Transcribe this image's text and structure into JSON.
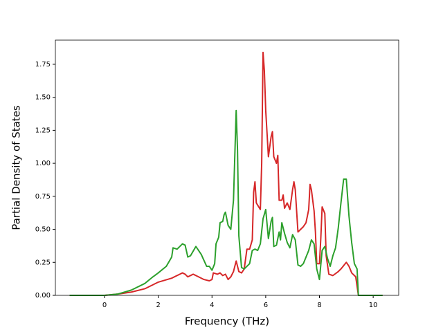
{
  "chart_data": {
    "type": "line",
    "xlabel": "Frequency (THz)",
    "ylabel": "Partial Density of States",
    "xlim": [
      -1.83,
      10.95
    ],
    "ylim": [
      0,
      1.933
    ],
    "xticks": [
      0,
      2,
      4,
      6,
      8,
      10
    ],
    "yticks": [
      {
        "value": 0,
        "label": "0.00"
      },
      {
        "value": 0.25,
        "label": "0.25"
      },
      {
        "value": 0.5,
        "label": "0.50"
      },
      {
        "value": 0.75,
        "label": "0.75"
      },
      {
        "value": 1,
        "label": "1.00"
      },
      {
        "value": 1.25,
        "label": "1.25"
      },
      {
        "value": 1.5,
        "label": "1.50"
      },
      {
        "value": 1.75,
        "label": "1.75"
      }
    ],
    "grid": false,
    "series": [
      {
        "color": "#d62728",
        "x": [
          -1.3,
          0,
          0.5,
          1,
          1.5,
          1.8,
          2,
          2.5,
          2.8,
          2.9,
          3.0,
          3.1,
          3.3,
          3.5,
          3.7,
          3.9,
          4.0,
          4.05,
          4.2,
          4.3,
          4.4,
          4.5,
          4.6,
          4.7,
          4.8,
          4.9,
          5.0,
          5.1,
          5.2,
          5.3,
          5.4,
          5.5,
          5.55,
          5.6,
          5.65,
          5.8,
          5.85,
          5.9,
          5.95,
          6.0,
          6.1,
          6.2,
          6.25,
          6.3,
          6.4,
          6.45,
          6.5,
          6.6,
          6.65,
          6.7,
          6.8,
          6.9,
          7.0,
          7.05,
          7.1,
          7.2,
          7.4,
          7.5,
          7.6,
          7.65,
          7.7,
          7.8,
          7.85,
          7.9,
          8.0,
          8.05,
          8.1,
          8.2,
          8.25,
          8.35,
          8.5,
          8.7,
          8.8,
          9.0,
          9.1,
          9.2,
          9.35,
          9.45,
          10.35
        ],
        "values": [
          0,
          0,
          0.01,
          0.025,
          0.05,
          0.08,
          0.1,
          0.13,
          0.16,
          0.17,
          0.16,
          0.14,
          0.16,
          0.14,
          0.12,
          0.11,
          0.12,
          0.17,
          0.16,
          0.17,
          0.15,
          0.16,
          0.12,
          0.14,
          0.18,
          0.26,
          0.18,
          0.17,
          0.2,
          0.35,
          0.35,
          0.42,
          0.78,
          0.86,
          0.7,
          0.65,
          1.0,
          1.84,
          1.7,
          1.4,
          1.05,
          1.2,
          1.24,
          1.05,
          1.0,
          1.06,
          0.72,
          0.72,
          0.76,
          0.66,
          0.7,
          0.65,
          0.8,
          0.86,
          0.8,
          0.48,
          0.52,
          0.55,
          0.65,
          0.84,
          0.8,
          0.64,
          0.48,
          0.24,
          0.24,
          0.43,
          0.67,
          0.62,
          0.3,
          0.16,
          0.15,
          0.18,
          0.2,
          0.25,
          0.22,
          0.17,
          0.14,
          0,
          0
        ]
      },
      {
        "color": "#2ca02c",
        "x": [
          -1.3,
          0,
          0.5,
          1,
          1.5,
          1.8,
          2,
          2.3,
          2.5,
          2.55,
          2.7,
          2.9,
          3.0,
          3.1,
          3.2,
          3.4,
          3.6,
          3.8,
          3.9,
          4.0,
          4.1,
          4.15,
          4.25,
          4.3,
          4.4,
          4.45,
          4.5,
          4.6,
          4.7,
          4.8,
          4.9,
          4.95,
          5.0,
          5.1,
          5.2,
          5.4,
          5.5,
          5.6,
          5.7,
          5.8,
          5.9,
          6.0,
          6.1,
          6.2,
          6.25,
          6.3,
          6.4,
          6.5,
          6.55,
          6.6,
          6.7,
          6.8,
          6.9,
          7.0,
          7.1,
          7.2,
          7.3,
          7.4,
          7.6,
          7.7,
          7.8,
          7.9,
          8.0,
          8.1,
          8.2,
          8.3,
          8.4,
          8.5,
          8.6,
          8.7,
          8.8,
          8.9,
          9.0,
          9.1,
          9.2,
          9.3,
          9.4,
          9.45,
          10.35
        ],
        "values": [
          0,
          0,
          0.01,
          0.04,
          0.09,
          0.14,
          0.17,
          0.22,
          0.29,
          0.36,
          0.35,
          0.39,
          0.38,
          0.29,
          0.3,
          0.37,
          0.31,
          0.22,
          0.22,
          0.19,
          0.24,
          0.39,
          0.44,
          0.55,
          0.56,
          0.61,
          0.63,
          0.53,
          0.5,
          0.72,
          1.4,
          1.1,
          0.45,
          0.21,
          0.2,
          0.24,
          0.34,
          0.35,
          0.34,
          0.39,
          0.58,
          0.65,
          0.43,
          0.56,
          0.59,
          0.37,
          0.38,
          0.48,
          0.42,
          0.55,
          0.47,
          0.4,
          0.36,
          0.46,
          0.42,
          0.23,
          0.22,
          0.24,
          0.34,
          0.42,
          0.39,
          0.2,
          0.12,
          0.34,
          0.37,
          0.28,
          0.22,
          0.3,
          0.36,
          0.51,
          0.7,
          0.88,
          0.88,
          0.6,
          0.4,
          0.24,
          0.2,
          0,
          0
        ]
      }
    ]
  }
}
